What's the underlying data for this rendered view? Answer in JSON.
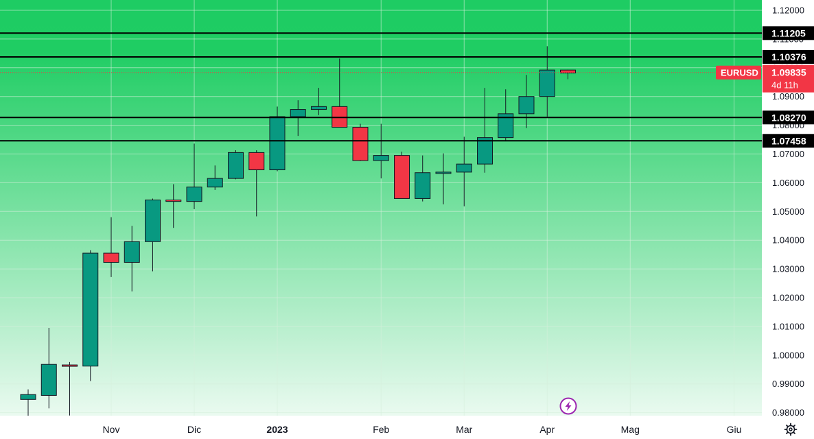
{
  "chart_data": {
    "type": "candlestick",
    "symbol": "EURUSD",
    "ylim": [
      0.978,
      1.1225
    ],
    "y_ticks": [
      "1.12000",
      "1.11000",
      "1.10000",
      "1.09000",
      "1.08000",
      "1.07000",
      "1.06000",
      "1.05000",
      "1.04000",
      "1.03000",
      "1.02000",
      "1.01000",
      "1.00000",
      "0.99000",
      "0.98000"
    ],
    "x_labels": [
      {
        "label": "Nov",
        "bar": 4,
        "bold": false
      },
      {
        "label": "Dic",
        "bar": 8,
        "bold": false
      },
      {
        "label": "2023",
        "bar": 12,
        "bold": true
      },
      {
        "label": "Feb",
        "bar": 17,
        "bold": false
      },
      {
        "label": "Mar",
        "bar": 21,
        "bold": false
      },
      {
        "label": "Apr",
        "bar": 25,
        "bold": false
      },
      {
        "label": "Mag",
        "bar": 29,
        "bold": false
      },
      {
        "label": "Giu",
        "bar": 34,
        "bold": false
      }
    ],
    "candles": [
      {
        "open": 0.9846,
        "high": 0.9881,
        "low": 0.977,
        "close": 0.9863
      },
      {
        "open": 0.986,
        "high": 1.0095,
        "low": 0.9815,
        "close": 0.9968
      },
      {
        "open": 0.9966,
        "high": 0.9976,
        "low": 0.979,
        "close": 0.9962
      },
      {
        "open": 0.9962,
        "high": 1.0365,
        "low": 0.991,
        "close": 1.0355
      },
      {
        "open": 1.0355,
        "high": 1.048,
        "low": 1.0272,
        "close": 1.0323
      },
      {
        "open": 1.0323,
        "high": 1.045,
        "low": 1.0222,
        "close": 1.0395
      },
      {
        "open": 1.0395,
        "high": 1.0545,
        "low": 1.0292,
        "close": 1.054
      },
      {
        "open": 1.054,
        "high": 1.0595,
        "low": 1.0443,
        "close": 1.0535
      },
      {
        "open": 1.0535,
        "high": 1.0736,
        "low": 1.0508,
        "close": 1.0585
      },
      {
        "open": 1.0585,
        "high": 1.066,
        "low": 1.0575,
        "close": 1.0615
      },
      {
        "open": 1.0615,
        "high": 1.0713,
        "low": 1.0612,
        "close": 1.0705
      },
      {
        "open": 1.0705,
        "high": 1.0713,
        "low": 1.0483,
        "close": 1.0645
      },
      {
        "open": 1.0645,
        "high": 1.0865,
        "low": 1.064,
        "close": 1.083
      },
      {
        "open": 1.083,
        "high": 1.0887,
        "low": 1.0763,
        "close": 1.0855
      },
      {
        "open": 1.0855,
        "high": 1.093,
        "low": 1.0835,
        "close": 1.0865
      },
      {
        "open": 1.0865,
        "high": 1.1032,
        "low": 1.0792,
        "close": 1.0793
      },
      {
        "open": 1.0793,
        "high": 1.0805,
        "low": 1.0675,
        "close": 1.0677
      },
      {
        "open": 1.0677,
        "high": 1.0805,
        "low": 1.0615,
        "close": 1.0695
      },
      {
        "open": 1.0695,
        "high": 1.0708,
        "low": 1.0545,
        "close": 1.0545
      },
      {
        "open": 1.0545,
        "high": 1.0695,
        "low": 1.0535,
        "close": 1.0635
      },
      {
        "open": 1.0635,
        "high": 1.0702,
        "low": 1.0525,
        "close": 1.0637
      },
      {
        "open": 1.0637,
        "high": 1.076,
        "low": 1.0518,
        "close": 1.0665
      },
      {
        "open": 1.0665,
        "high": 1.093,
        "low": 1.0635,
        "close": 1.0757
      },
      {
        "open": 1.0757,
        "high": 1.0925,
        "low": 1.0745,
        "close": 1.084
      },
      {
        "open": 1.084,
        "high": 1.0975,
        "low": 1.079,
        "close": 1.09
      },
      {
        "open": 1.09,
        "high": 1.1075,
        "low": 1.083,
        "close": 1.0992
      },
      {
        "open": 1.0992,
        "high": 1.0993,
        "low": 1.096,
        "close": 1.0982
      }
    ],
    "levels": [
      {
        "value": 1.11205,
        "label": "1.11205"
      },
      {
        "value": 1.10376,
        "label": "1.10376"
      },
      {
        "value": 1.0827,
        "label": "1.08270"
      },
      {
        "value": 1.07458,
        "label": "1.07458"
      }
    ],
    "current": {
      "value": 1.09835,
      "label": "1.09835",
      "countdown": "4d 11h"
    },
    "colors": {
      "up": "#089981",
      "down": "#f23645",
      "wick": "#131722",
      "level": "#000000",
      "bg_top": "#1ecc63",
      "bg_bottom": "#e8f9ee",
      "grid": "#d6efdc",
      "tag": "#000000",
      "price_tag": "#f23645",
      "event_icon": "#9c27b0"
    }
  },
  "ui": {
    "event_icon": "lightning-icon",
    "settings_icon": "gear-icon"
  }
}
